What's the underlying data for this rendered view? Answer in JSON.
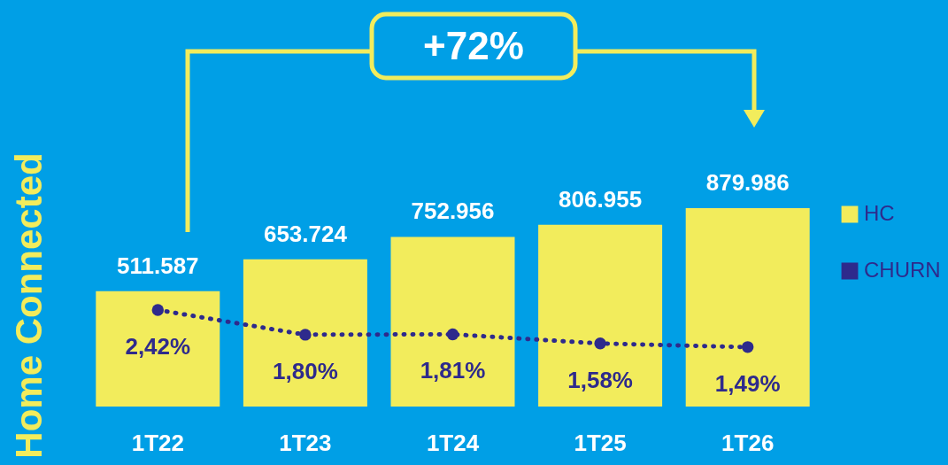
{
  "chart_data": {
    "type": "bar",
    "ylabel": "Home Connected",
    "categories": [
      "1T22",
      "1T23",
      "1T24",
      "1T25",
      "1T26"
    ],
    "series": [
      {
        "name": "HC",
        "color": "#f2ec5c",
        "values": [
          511587,
          653724,
          752956,
          806955,
          879986
        ],
        "value_labels": [
          "511.587",
          "653.724",
          "752.956",
          "806.955",
          "879.986"
        ]
      },
      {
        "name": "CHURN",
        "type": "line",
        "axis": "y2",
        "color": "#2e2a8c",
        "values": [
          2.42,
          1.8,
          1.81,
          1.58,
          1.49
        ],
        "value_labels": [
          "2,42%",
          "1,80%",
          "1,81%",
          "1,58%",
          "1,49%"
        ]
      }
    ],
    "annotations": [
      "+72%"
    ],
    "legend": "right",
    "grid": false,
    "tick_labels": "x",
    "marker": "circle",
    "line_style": "dotted"
  }
}
